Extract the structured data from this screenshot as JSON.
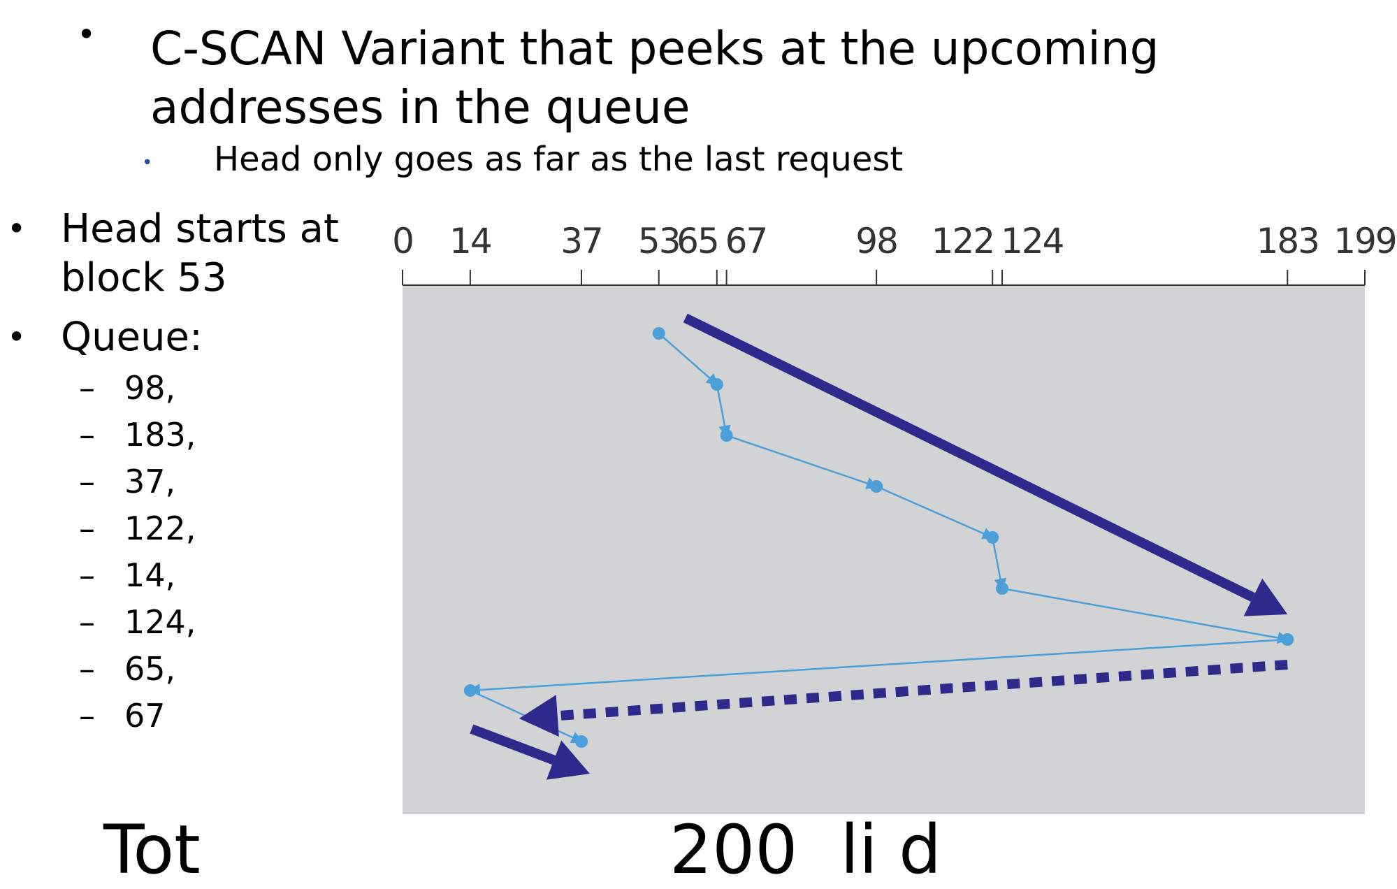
{
  "slide": {
    "main_bullet": "C-SCAN Variant that peeks at the upcoming addresses in the queue",
    "sub_bullet": "Head only goes as far as the last request",
    "left_bullets": [
      "Head starts at block 53",
      "Queue:"
    ],
    "queue": [
      "98,",
      "183,",
      "37,",
      "122,",
      "14,",
      "124,",
      "65,",
      "67"
    ],
    "footer_partial": "Tot                      200  li d"
  },
  "chart_data": {
    "type": "diagram",
    "title": "",
    "axis_ticks": [
      0,
      14,
      37,
      53,
      65,
      67,
      98,
      122,
      124,
      183,
      199
    ],
    "axis_range": [
      0,
      199
    ],
    "head_start": 53,
    "service_order": [
      53,
      65,
      67,
      98,
      122,
      124,
      183,
      14,
      37
    ],
    "annotations": [
      {
        "kind": "solid-arrow",
        "meaning": "sweep right",
        "from": 53,
        "to": 183
      },
      {
        "kind": "dotted-arrow",
        "meaning": "return jump",
        "from": 183,
        "to": 14
      },
      {
        "kind": "solid-arrow",
        "meaning": "continue right",
        "from": 14,
        "to": 37
      }
    ],
    "colors": {
      "path": "#4a9fd8",
      "arrow": "#2e2a8c",
      "background": "#d1d3d4",
      "axis": "#333333"
    }
  }
}
